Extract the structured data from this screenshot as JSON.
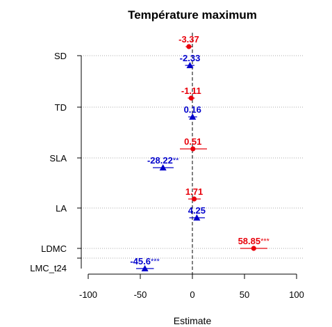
{
  "chart_data": {
    "type": "forest",
    "title": "Température maximum",
    "xlabel": "Estimate",
    "xlim": [
      -100,
      100
    ],
    "xticks": [
      "-100",
      "-50",
      "0",
      "50",
      "100"
    ],
    "xtick_values": [
      -100,
      -50,
      0,
      50,
      100
    ],
    "reference_line_x": 0,
    "grid": "horizontal dotted",
    "categories": [
      "SD",
      "TD",
      "SLA",
      "LA",
      "LDMC",
      "LMC_t24"
    ],
    "series": [
      {
        "color": "#e8000b",
        "marker": "circle",
        "points": [
          {
            "category": "SD",
            "estimate": -3.37,
            "ci": [
              -6.5,
              -0.2
            ],
            "label": "-3.37",
            "sig": ""
          },
          {
            "category": "TD",
            "estimate": -1.11,
            "ci": [
              -4.5,
              2.3
            ],
            "label": "-1.11",
            "sig": ""
          },
          {
            "category": "SLA",
            "estimate": 0.51,
            "ci": [
              -12,
              14
            ],
            "label": "0.51",
            "sig": ""
          },
          {
            "category": "LA",
            "estimate": 1.71,
            "ci": [
              -4,
              8
            ],
            "label": "1.71",
            "sig": ""
          },
          {
            "category": "LDMC",
            "estimate": 58.85,
            "ci": [
              46,
              72
            ],
            "label": "58.85",
            "sig": "***"
          }
        ]
      },
      {
        "color": "#0000cc",
        "marker": "triangle",
        "points": [
          {
            "category": "SD",
            "estimate": -2.33,
            "ci": [
              -7,
              2
            ],
            "label": "-2.33",
            "sig": ""
          },
          {
            "category": "TD",
            "estimate": 0.16,
            "ci": [
              -4,
              4.5
            ],
            "label": "0.16",
            "sig": ""
          },
          {
            "category": "SLA",
            "estimate": -28.22,
            "ci": [
              -38,
              -18
            ],
            "label": "-28.22",
            "sig": "**"
          },
          {
            "category": "LA",
            "estimate": 4.25,
            "ci": [
              -3,
              12
            ],
            "label": "4.25",
            "sig": ""
          },
          {
            "category": "LMC_t24",
            "estimate": -45.6,
            "ci": [
              -54,
              -37
            ],
            "label": "-45.6",
            "sig": "***"
          }
        ]
      }
    ]
  }
}
